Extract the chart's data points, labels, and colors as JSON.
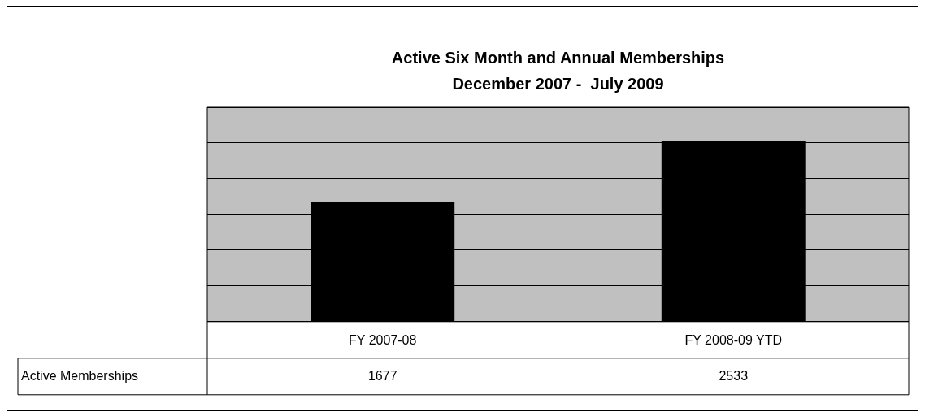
{
  "chart_data": {
    "type": "bar",
    "title": "Active Six Month and Annual Memberships",
    "subtitle": "December 2007 -  July 2009",
    "categories": [
      "FY 2007-08",
      "FY 2008-09 YTD"
    ],
    "series": [
      {
        "name": "Active Memberships",
        "color": "#000000",
        "values": [
          1677,
          2533
        ]
      }
    ],
    "ylim": [
      0,
      3000
    ],
    "yticks": [
      {
        "value": 0,
        "label": null
      },
      {
        "value": 500,
        "label": null
      },
      {
        "value": 1000,
        "label": null
      },
      {
        "value": 1500,
        "label": null
      },
      {
        "value": 2000,
        "label": null
      },
      {
        "value": 2500,
        "label": null
      },
      {
        "value": 3000,
        "label": null
      }
    ],
    "tick_labels": "x",
    "grid": "y",
    "data_labels": true,
    "legend": false
  }
}
